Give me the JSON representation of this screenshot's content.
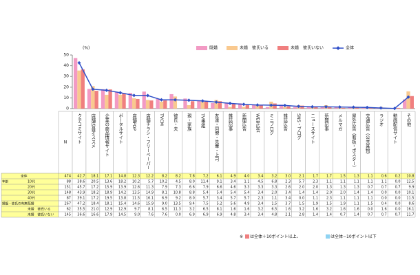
{
  "chart_data": {
    "type": "bar",
    "y_label": "(%)",
    "ylim": [
      0,
      50
    ],
    "yticks": [
      0,
      10,
      20,
      30,
      40,
      50
    ],
    "legend": "top",
    "categories": [
      "クチコミサイト",
      "店舗店員オススメ",
      "企業の商品情報サイト",
      "ポータルサイト",
      "店舗POP",
      "店舗チラシ・フリーペーパー",
      "TVCM",
      "彼氏・夫",
      "親・家族",
      "TV番組",
      "友達・同僚・先輩・上司",
      "雑誌記事",
      "新聞広告",
      "WEB広告",
      "ミニブログ",
      "雑誌広告",
      "SNS・ブログ",
      "ニュースサイト",
      "新聞記事",
      "メルマガ",
      "屋外広告（看板・ポスター）",
      "交通広告（公共乗物）",
      "ラジオ",
      "動画配信サイト",
      "その他"
    ],
    "series": [
      {
        "name": "既婚",
        "color": "#f29ac4",
        "values": [
          47.2,
          18.4,
          18.1,
          15.4,
          14.6,
          15.9,
          9.0,
          13.5,
          9.4,
          7.5,
          5.2,
          5.6,
          4.9,
          3.4,
          1.5,
          3.7,
          1.5,
          1.9,
          1.5,
          1.9,
          1.1,
          1.5,
          0.4,
          0,
          8.6
        ]
      },
      {
        "name": "未婚　彼氏いる",
        "color": "#f9c98f",
        "values": [
          35.5,
          21.0,
          12.9,
          12.9,
          9.7,
          8.1,
          6.5,
          11.3,
          3.2,
          6.5,
          8.1,
          1.6,
          1.6,
          3.2,
          6.5,
          1.6,
          3.2,
          1.6,
          3.2,
          1.6,
          1.6,
          0,
          1.6,
          0,
          16.1
        ]
      },
      {
        "name": "未婚　彼氏いない",
        "color": "#f07f7f",
        "values": [
          36.6,
          16.6,
          17.9,
          14.5,
          9.0,
          7.6,
          7.6,
          0,
          6.9,
          6.9,
          6.9,
          4.8,
          3.4,
          3.4,
          4.8,
          2.1,
          2.8,
          1.4,
          1.4,
          0.7,
          1.4,
          0.7,
          0.7,
          0.7,
          11.7
        ]
      },
      {
        "name": "全体",
        "type": "line",
        "color": "#2f4fc8",
        "values": [
          42.7,
          18.1,
          17.1,
          14.8,
          12.3,
          12.2,
          8.2,
          8.2,
          7.8,
          7.2,
          6.1,
          4.9,
          4.0,
          3.4,
          3.2,
          3.0,
          2.1,
          1.7,
          1.7,
          1.5,
          1.3,
          1.1,
          0.6,
          0.2,
          10.8
        ]
      }
    ]
  },
  "table": {
    "n_header": "N",
    "total_n": 474,
    "age_label": "年齢",
    "age_rows": [
      {
        "label": "10代",
        "n": 88,
        "values": [
          38.6,
          20.5,
          13.6,
          18.2,
          10.2,
          5.7,
          10.2,
          4.5,
          8.0,
          11.4,
          9.1,
          3.4,
          1.1,
          4.5,
          6.8,
          2.3,
          5.7,
          2.3,
          1.1,
          1.1,
          1.1,
          1.1,
          1.1,
          0,
          12.5
        ]
      },
      {
        "label": "20代",
        "n": 151,
        "values": [
          45.7,
          17.2,
          15.9,
          13.9,
          12.6,
          11.3,
          7.9,
          7.3,
          6.6,
          7.9,
          6.6,
          4.6,
          3.3,
          3.3,
          3.3,
          2.6,
          2.0,
          2.0,
          1.3,
          1.3,
          1.3,
          0.7,
          0.7,
          0.7,
          9.9
        ]
      },
      {
        "label": "30代",
        "n": 148,
        "values": [
          43.9,
          18.2,
          18.9,
          14.2,
          13.5,
          14.9,
          8.1,
          10.8,
          8.8,
          5.4,
          5.4,
          5.4,
          5.4,
          3.4,
          2.0,
          3.4,
          1.4,
          1.4,
          2.0,
          2.0,
          1.4,
          1.4,
          0,
          0,
          10.1
        ]
      },
      {
        "label": "40代",
        "n": 87,
        "values": [
          39.1,
          17.2,
          19.5,
          13.8,
          11.5,
          16.1,
          6.9,
          9.2,
          8.0,
          5.7,
          3.4,
          5.7,
          5.7,
          2.3,
          1.1,
          3.4,
          0,
          1.1,
          2.3,
          1.1,
          1.1,
          1.1,
          0,
          0,
          11.5
        ]
      }
    ],
    "status_label": "婚姻・彼氏の有無",
    "status_n": [
      267,
      62,
      145
    ],
    "note": [
      "※",
      "は全体＋10ポイント以上、",
      "は全体−10ポイント以下"
    ]
  }
}
